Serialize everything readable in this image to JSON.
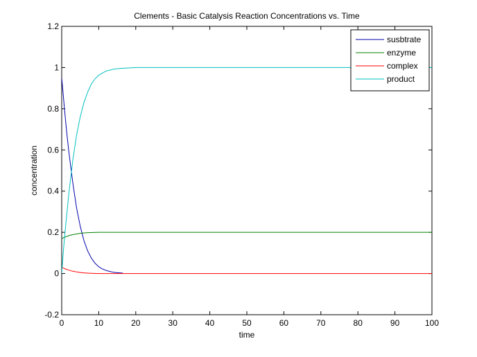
{
  "chart_data": {
    "type": "line",
    "title": "Clements - Basic Catalysis Reaction Concentrations vs. Time",
    "xlabel": "time",
    "ylabel": "concentration",
    "xlim": [
      0,
      100
    ],
    "ylim": [
      -0.2,
      1.2
    ],
    "xticks": [
      0,
      10,
      20,
      30,
      40,
      50,
      60,
      70,
      80,
      90,
      100
    ],
    "yticks": [
      -0.2,
      0,
      0.2,
      0.4,
      0.6,
      0.8,
      1,
      1.2
    ],
    "xtick_labels": [
      "0",
      "10",
      "20",
      "30",
      "40",
      "50",
      "60",
      "70",
      "80",
      "90",
      "100"
    ],
    "ytick_labels": [
      "-0.2",
      "0",
      "0.2",
      "0.4",
      "0.6",
      "0.8",
      "1",
      "1.2"
    ],
    "grid": false,
    "legend_position": "top-right",
    "series": [
      {
        "name": "susbtrate",
        "color": "#0000aa",
        "x": [
          0,
          0.5,
          1,
          1.5,
          2,
          3,
          4,
          5,
          6,
          7,
          8,
          9,
          10,
          11,
          12,
          13,
          14,
          15,
          16.5
        ],
        "y": [
          0.95,
          0.85,
          0.75,
          0.66,
          0.58,
          0.44,
          0.32,
          0.23,
          0.16,
          0.11,
          0.075,
          0.05,
          0.033,
          0.022,
          0.015,
          0.01,
          0.006,
          0.004,
          0.002
        ]
      },
      {
        "name": "enzyme",
        "color": "#007f00",
        "x": [
          0,
          0.5,
          1,
          2,
          3,
          4,
          5,
          6,
          8,
          10,
          100
        ],
        "y": [
          0.17,
          0.174,
          0.178,
          0.184,
          0.189,
          0.192,
          0.195,
          0.197,
          0.199,
          0.2,
          0.2
        ]
      },
      {
        "name": "complex",
        "color": "#ff0000",
        "x": [
          0,
          0.5,
          1,
          2,
          3,
          4,
          5,
          6,
          8,
          10,
          100
        ],
        "y": [
          0.03,
          0.026,
          0.022,
          0.016,
          0.011,
          0.008,
          0.005,
          0.003,
          0.001,
          0,
          0
        ]
      },
      {
        "name": "product",
        "color": "#00bfbf",
        "x": [
          0,
          0.5,
          1,
          1.5,
          2,
          3,
          4,
          5,
          6,
          7,
          8,
          9,
          10,
          12,
          14,
          16,
          18,
          20,
          100
        ],
        "y": [
          0.0,
          0.12,
          0.22,
          0.31,
          0.4,
          0.55,
          0.67,
          0.76,
          0.83,
          0.88,
          0.92,
          0.945,
          0.963,
          0.983,
          0.992,
          0.996,
          0.998,
          1.0,
          1.0
        ]
      }
    ]
  }
}
